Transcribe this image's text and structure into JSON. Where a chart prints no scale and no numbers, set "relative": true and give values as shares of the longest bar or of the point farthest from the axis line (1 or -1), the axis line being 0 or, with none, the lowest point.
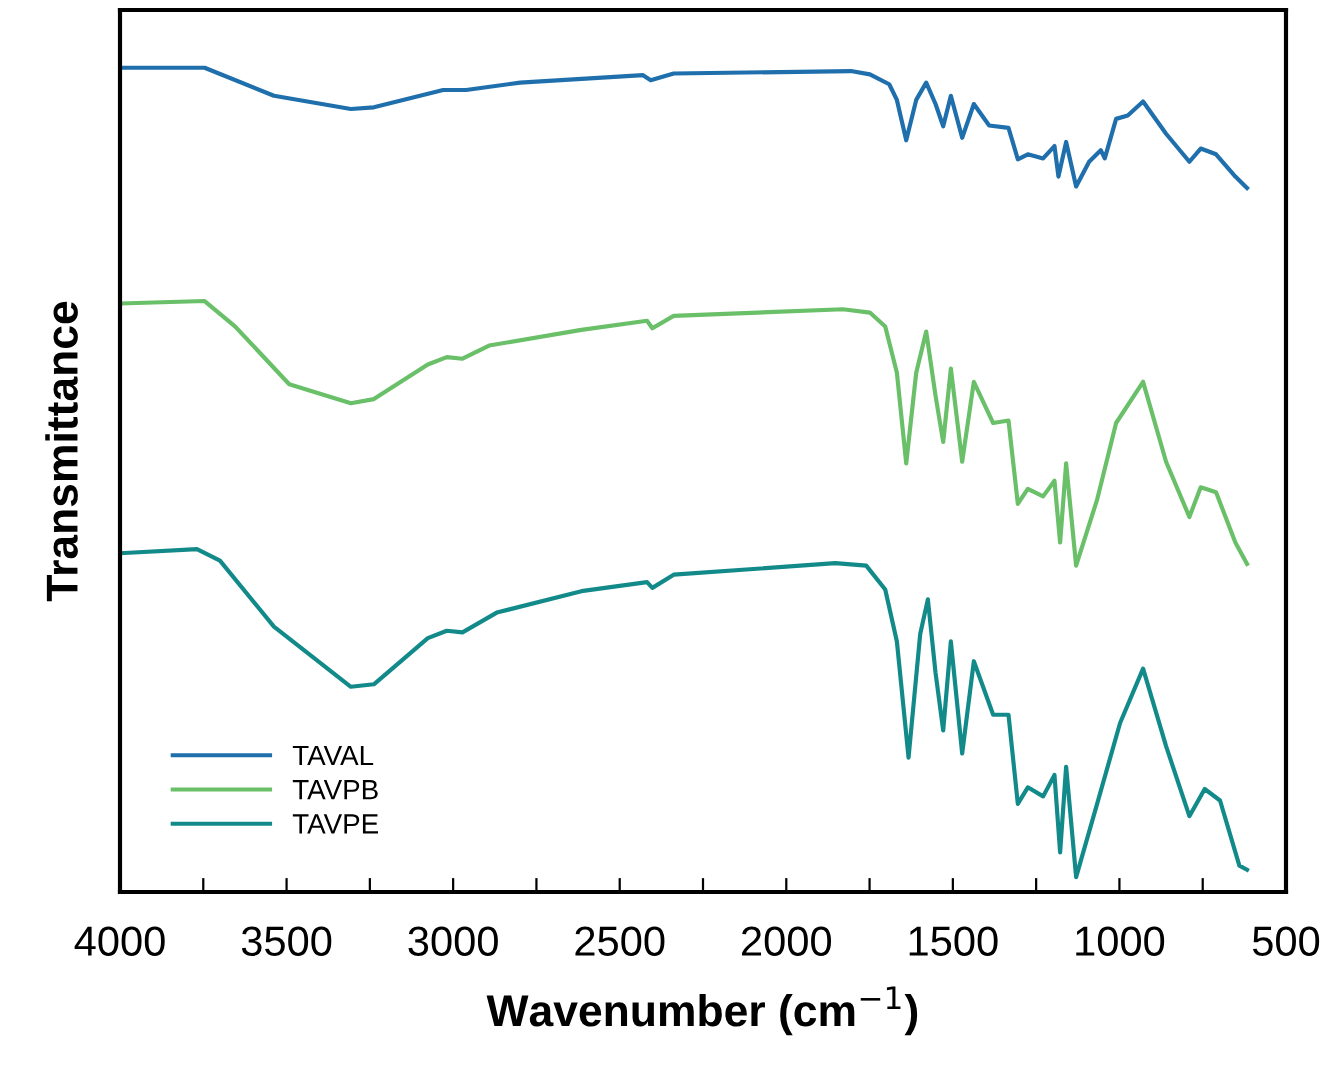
{
  "chart_data": {
    "type": "line",
    "relative": true,
    "xlabel": "Wavenumber (cm$^{−1}$)",
    "ylabel": "Transmittance",
    "xlim": [
      4000,
      500
    ],
    "xticks": [
      4000,
      {
        "value": 3750,
        "label": null
      },
      3500,
      {
        "value": 3250,
        "label": null
      },
      3000,
      {
        "value": 2750,
        "label": null
      },
      2500,
      {
        "value": 2250,
        "label": null
      },
      2000,
      {
        "value": 1750,
        "label": null
      },
      1500,
      {
        "value": 1250,
        "label": null
      },
      1000,
      {
        "value": 750,
        "label": null
      },
      500
    ],
    "legend": "bottom left",
    "grid": false,
    "line_style": "solid",
    "marker": "none",
    "series": [
      {
        "name": "TAVAL",
        "color": "#1f6fad",
        "x": [
          4000,
          3746,
          3538,
          3307,
          3238,
          3030,
          2961,
          2799,
          2430,
          2407,
          2338,
          1806,
          1749,
          1691,
          1668,
          1640,
          1610,
          1580,
          1552,
          1529,
          1506,
          1472,
          1437,
          1391,
          1333,
          1305,
          1275,
          1229,
          1195,
          1183,
          1160,
          1130,
          1091,
          1056,
          1044,
          1010,
          975,
          929,
          860,
          790,
          756,
          710,
          652,
          617
        ],
        "values": [
          1.0,
          1.0,
          0.966,
          0.95,
          0.952,
          0.973,
          0.973,
          0.982,
          0.991,
          0.985,
          0.993,
          0.996,
          0.992,
          0.98,
          0.961,
          0.912,
          0.961,
          0.982,
          0.956,
          0.929,
          0.966,
          0.915,
          0.956,
          0.93,
          0.927,
          0.889,
          0.895,
          0.89,
          0.905,
          0.868,
          0.91,
          0.856,
          0.886,
          0.9,
          0.89,
          0.938,
          0.942,
          0.959,
          0.92,
          0.886,
          0.902,
          0.895,
          0.868,
          0.854
        ]
      },
      {
        "name": "TAVPB",
        "color": "#6abf69",
        "x": [
          4000,
          3746,
          3654,
          3492,
          3307,
          3238,
          3076,
          3019,
          2972,
          2892,
          2615,
          2418,
          2402,
          2338,
          1830,
          1749,
          1703,
          1668,
          1640,
          1610,
          1580,
          1552,
          1529,
          1506,
          1472,
          1437,
          1379,
          1333,
          1305,
          1275,
          1229,
          1195,
          1178,
          1160,
          1130,
          1067,
          1010,
          929,
          860,
          790,
          756,
          710,
          652,
          617
        ],
        "values": [
          0.714,
          0.717,
          0.686,
          0.616,
          0.593,
          0.598,
          0.64,
          0.649,
          0.647,
          0.663,
          0.682,
          0.693,
          0.684,
          0.699,
          0.707,
          0.703,
          0.686,
          0.63,
          0.52,
          0.63,
          0.68,
          0.602,
          0.546,
          0.635,
          0.522,
          0.619,
          0.569,
          0.572,
          0.471,
          0.489,
          0.48,
          0.499,
          0.424,
          0.52,
          0.396,
          0.476,
          0.569,
          0.619,
          0.522,
          0.455,
          0.491,
          0.485,
          0.424,
          0.398
        ]
      },
      {
        "name": "TAVPE",
        "color": "#138a8a",
        "x": [
          4000,
          3769,
          3700,
          3538,
          3307,
          3238,
          3076,
          3019,
          2972,
          2869,
          2615,
          2418,
          2402,
          2338,
          1853,
          1760,
          1703,
          1668,
          1633,
          1598,
          1575,
          1552,
          1529,
          1506,
          1472,
          1437,
          1379,
          1333,
          1305,
          1275,
          1229,
          1195,
          1178,
          1160,
          1130,
          1067,
          998,
          929,
          860,
          790,
          744,
          698,
          640,
          617
        ],
        "values": [
          0.411,
          0.416,
          0.402,
          0.322,
          0.249,
          0.252,
          0.308,
          0.317,
          0.315,
          0.339,
          0.365,
          0.376,
          0.369,
          0.385,
          0.399,
          0.396,
          0.367,
          0.304,
          0.163,
          0.313,
          0.355,
          0.266,
          0.196,
          0.304,
          0.168,
          0.28,
          0.215,
          0.215,
          0.107,
          0.127,
          0.116,
          0.142,
          0.048,
          0.152,
          0.018,
          0.107,
          0.205,
          0.271,
          0.177,
          0.092,
          0.125,
          0.111,
          0.032,
          0.027
        ]
      }
    ]
  }
}
